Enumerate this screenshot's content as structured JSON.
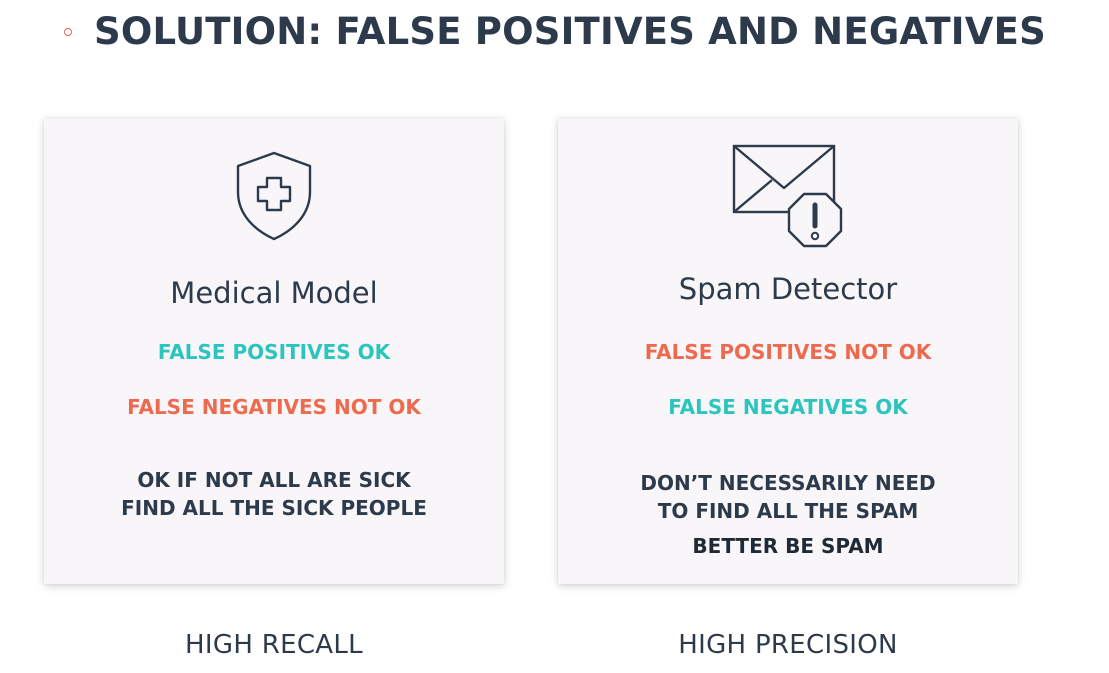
{
  "slide": {
    "title": "SOLUTION: FALSE POSITIVES AND NEGATIVES",
    "accent_color": "#e06a5a"
  },
  "cards": [
    {
      "icon": "medical-shield-icon",
      "title": "Medical Model",
      "false_positives": "FALSE POSITIVES OK",
      "false_negatives": "FALSE NEGATIVES NOT OK",
      "note_lines": [
        "OK IF NOT ALL ARE SICK",
        "FIND ALL THE SICK PEOPLE"
      ],
      "footer": "HIGH RECALL"
    },
    {
      "icon": "spam-mail-alert-icon",
      "title": "Spam Detector",
      "false_positives": "FALSE POSITIVES NOT OK",
      "false_negatives": "FALSE NEGATIVES OK",
      "note_lines": [
        "DON’T NECESSARILY NEED",
        "TO FIND ALL THE SPAM",
        "BETTER BE SPAM"
      ],
      "footer": "HIGH PRECISION"
    }
  ],
  "colors": {
    "ok": "#2cc5bd",
    "not_ok": "#ee6a4f",
    "text": "#2c3a4b",
    "card_bg": "#f8f6f9"
  }
}
